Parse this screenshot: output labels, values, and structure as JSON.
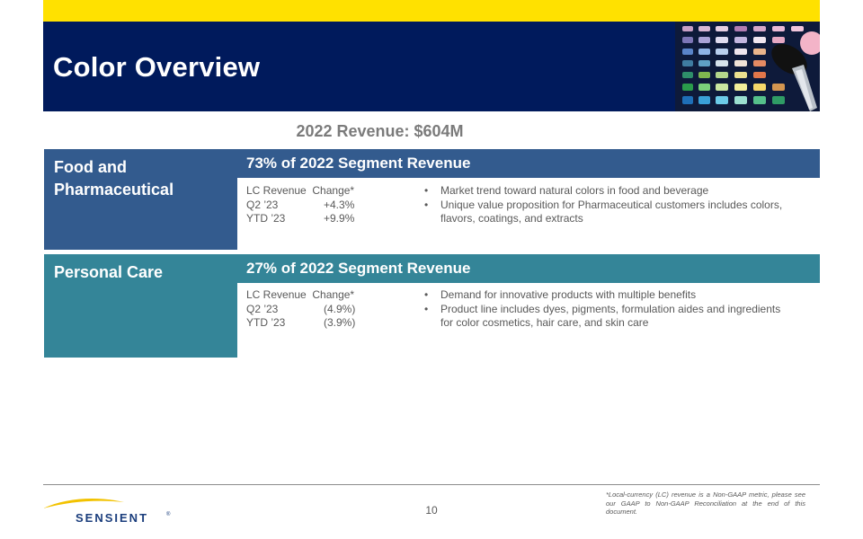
{
  "header": {
    "title": "Color Overview",
    "brand_colors": {
      "yellow": "#ffe100",
      "navy": "#001a5c"
    }
  },
  "revenue_title": "2022 Revenue: $604M",
  "segments": [
    {
      "name": "Food and Pharmaceutical",
      "share": "73% of 2022 Segment Revenue",
      "color": "#335b8e",
      "metrics": [
        {
          "label": "LC Revenue  Change*",
          "value": ""
        },
        {
          "label": "Q2 ’23",
          "value": "+4.3%"
        },
        {
          "label": "YTD ’23",
          "value": "+9.9%"
        }
      ],
      "bullets": [
        "Market trend toward natural colors in food and beverage",
        "Unique value  proposition for Pharmaceutical customers includes colors, flavors,  coatings, and extracts"
      ]
    },
    {
      "name": "Personal Care",
      "share": "27% of 2022 Segment Revenue",
      "color": "#348598",
      "metrics": [
        {
          "label": "LC Revenue  Change*",
          "value": ""
        },
        {
          "label": "Q2 ’23",
          "value": "(4.9%)"
        },
        {
          "label": "YTD ’23",
          "value": "(3.9%)"
        }
      ],
      "bullets": [
        "Demand for innovative  products with multiple benefits",
        "Product line includes dyes, pigments, formulation aides and ingredients for color cosmetics, hair care, and skin care"
      ]
    }
  ],
  "footer": {
    "logo_text": "SENSIENT",
    "page_number": "10",
    "footnote": "*Local-currency (LC) revenue is a Non-GAAP metric, please see our GAAP to Non-GAAP Reconciliation at the end of this document."
  }
}
